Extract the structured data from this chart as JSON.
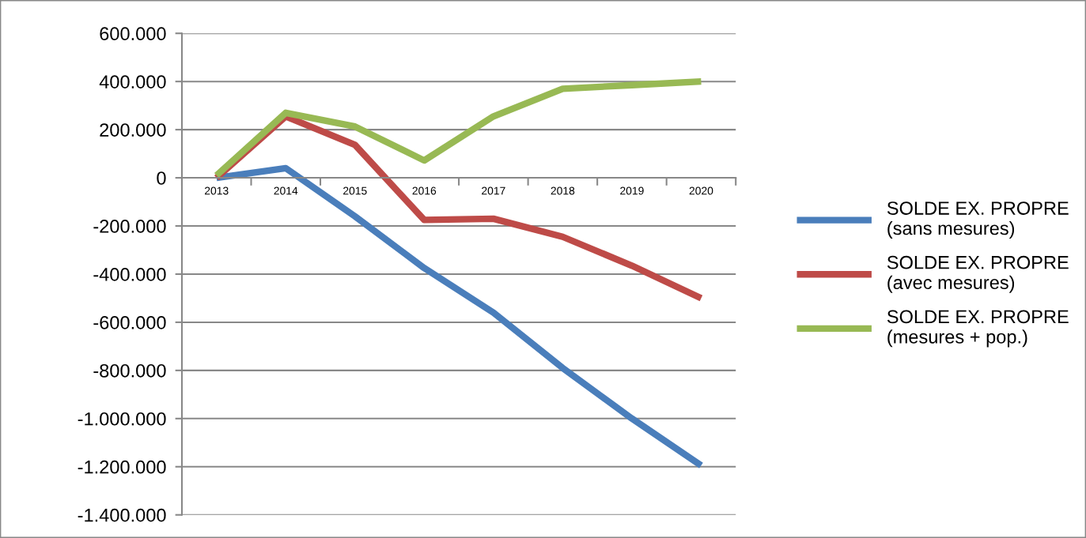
{
  "chart_data": {
    "type": "line",
    "categories": [
      "2013",
      "2014",
      "2015",
      "2016",
      "2017",
      "2018",
      "2019",
      "2020"
    ],
    "series": [
      {
        "name": "SOLDE EX. PROPRE\n(sans mesures)",
        "color": "#4a7ebb",
        "values": [
          0,
          40000,
          -160000,
          -375000,
          -560000,
          -790000,
          -1000000,
          -1195000
        ]
      },
      {
        "name": "SOLDE EX. PROPRE\n(avec mesures)",
        "color": "#be4b48",
        "values": [
          0,
          255000,
          137000,
          -175000,
          -170000,
          -245000,
          -365000,
          -500000
        ]
      },
      {
        "name": "SOLDE EX. PROPRE\n(mesures + pop.)",
        "color": "#98b954",
        "values": [
          10000,
          270000,
          213000,
          72000,
          255000,
          370000,
          385000,
          400000
        ]
      }
    ],
    "ylim": [
      -1400000,
      600000
    ],
    "yticks": [
      {
        "value": -1400000,
        "label": "-1.400.000"
      },
      {
        "value": -1200000,
        "label": "-1.200.000"
      },
      {
        "value": -1000000,
        "label": "-1.000.000"
      },
      {
        "value": -800000,
        "label": "-800.000"
      },
      {
        "value": -600000,
        "label": "-600.000"
      },
      {
        "value": -400000,
        "label": "-400.000"
      },
      {
        "value": -200000,
        "label": "-200.000"
      },
      {
        "value": 0,
        "label": "0"
      },
      {
        "value": 200000,
        "label": "200.000"
      },
      {
        "value": 400000,
        "label": "400.000"
      },
      {
        "value": 600000,
        "label": "600.000"
      }
    ],
    "grid": "y",
    "legend": "right",
    "marker": "none",
    "line_style": "solid"
  }
}
